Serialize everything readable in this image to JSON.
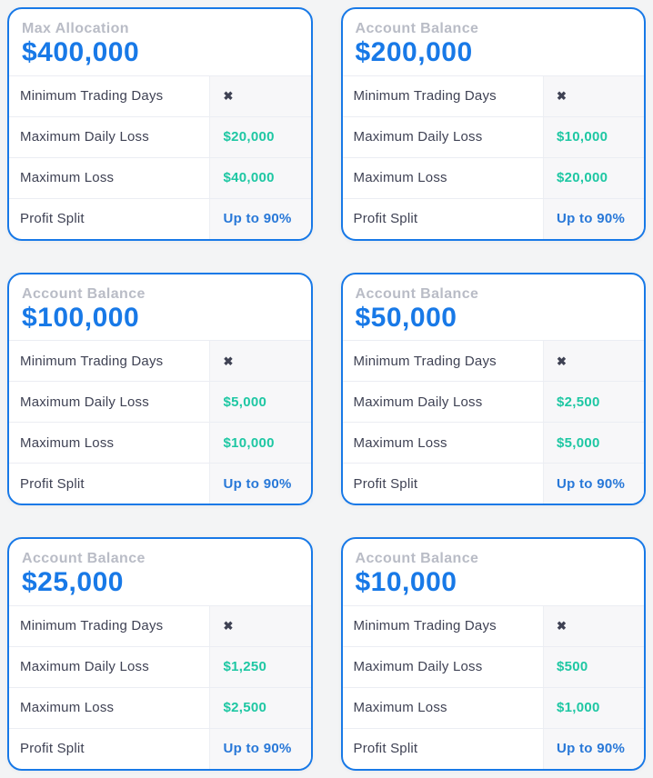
{
  "page": {
    "background_color": "#f3f4f5"
  },
  "colors": {
    "card_border_blue": "#1879e7",
    "amount_blue": "#1879e7",
    "value_green": "#1ec7a3",
    "profit_split_blue": "#2878d8",
    "row_label_dark": "#3f4254",
    "header_label_gray": "#b9bcc6",
    "value_column_bg": "#f7f7f9",
    "row_divider": "#ebedf3"
  },
  "icons": {
    "x_mark": "✖"
  },
  "cards": [
    {
      "header_label": "Max Allocation",
      "amount": "$400,000",
      "rows": [
        {
          "label": "Minimum Trading Days",
          "value": ""
        },
        {
          "label": "Maximum Daily Loss",
          "value": "$20,000"
        },
        {
          "label": "Maximum Loss",
          "value": "$40,000"
        },
        {
          "label": "Profit Split",
          "value": "Up to 90%"
        }
      ]
    },
    {
      "header_label": "Account Balance",
      "amount": "$200,000",
      "rows": [
        {
          "label": "Minimum Trading Days",
          "value": ""
        },
        {
          "label": "Maximum Daily Loss",
          "value": "$10,000"
        },
        {
          "label": "Maximum Loss",
          "value": "$20,000"
        },
        {
          "label": "Profit Split",
          "value": "Up to 90%"
        }
      ]
    },
    {
      "header_label": "Account Balance",
      "amount": "$100,000",
      "rows": [
        {
          "label": "Minimum Trading Days",
          "value": ""
        },
        {
          "label": "Maximum Daily Loss",
          "value": "$5,000"
        },
        {
          "label": "Maximum Loss",
          "value": "$10,000"
        },
        {
          "label": "Profit Split",
          "value": "Up to 90%"
        }
      ]
    },
    {
      "header_label": "Account Balance",
      "amount": "$50,000",
      "rows": [
        {
          "label": "Minimum Trading Days",
          "value": ""
        },
        {
          "label": "Maximum Daily Loss",
          "value": "$2,500"
        },
        {
          "label": "Maximum Loss",
          "value": "$5,000"
        },
        {
          "label": "Profit Split",
          "value": "Up to 90%"
        }
      ]
    },
    {
      "header_label": "Account Balance",
      "amount": "$25,000",
      "rows": [
        {
          "label": "Minimum Trading Days",
          "value": ""
        },
        {
          "label": "Maximum Daily Loss",
          "value": "$1,250"
        },
        {
          "label": "Maximum Loss",
          "value": "$2,500"
        },
        {
          "label": "Profit Split",
          "value": "Up to 90%"
        }
      ]
    },
    {
      "header_label": "Account Balance",
      "amount": "$10,000",
      "rows": [
        {
          "label": "Minimum Trading Days",
          "value": ""
        },
        {
          "label": "Maximum Daily Loss",
          "value": "$500"
        },
        {
          "label": "Maximum Loss",
          "value": "$1,000"
        },
        {
          "label": "Profit Split",
          "value": "Up to 90%"
        }
      ]
    }
  ]
}
